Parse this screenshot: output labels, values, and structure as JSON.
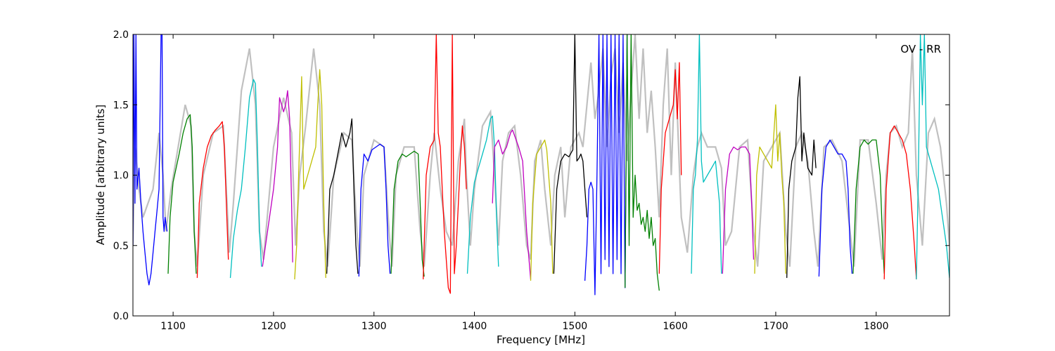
{
  "chart_data": {
    "type": "line",
    "xlabel": "Frequency [MHz]",
    "ylabel": "Amplitude [arbitrary units]",
    "annotation": "OV - RR",
    "annotation_position": "top-right",
    "xlim": [
      1060,
      1873
    ],
    "ylim": [
      0.0,
      2.0
    ],
    "xticks": [
      1100,
      1200,
      1300,
      1400,
      1500,
      1600,
      1700,
      1800
    ],
    "xtick_labels": [
      "1100",
      "1200",
      "1300",
      "1400",
      "1500",
      "1600",
      "1700",
      "1800"
    ],
    "yticks": [
      0.0,
      0.5,
      1.0,
      1.5,
      2.0
    ],
    "ytick_labels": [
      "0.0",
      "0.5",
      "1.0",
      "1.5",
      "2.0"
    ],
    "grid": false,
    "colors": {
      "background": "#c0c0c0",
      "blue": "#0000ff",
      "green": "#008000",
      "red": "#ff0000",
      "cyan": "#00bfbf",
      "magenta": "#bf00bf",
      "yellow": "#bfbf00",
      "black": "#000000"
    },
    "background_series": {
      "color": "#c0c0c0",
      "x": [
        1060,
        1062,
        1066,
        1070,
        1075,
        1080,
        1086,
        1090,
        1093,
        1098,
        1105,
        1112,
        1118,
        1121,
        1124,
        1130,
        1140,
        1150,
        1156,
        1160,
        1168,
        1176,
        1182,
        1186,
        1190,
        1200,
        1210,
        1218,
        1222,
        1226,
        1232,
        1240,
        1246,
        1250,
        1254,
        1260,
        1270,
        1278,
        1283,
        1286,
        1290,
        1300,
        1310,
        1315,
        1318,
        1322,
        1330,
        1340,
        1346,
        1350,
        1356,
        1360,
        1366,
        1372,
        1378,
        1384,
        1390,
        1392,
        1396,
        1400,
        1408,
        1416,
        1420,
        1424,
        1428,
        1434,
        1440,
        1446,
        1452,
        1456,
        1460,
        1466,
        1470,
        1476,
        1480,
        1486,
        1490,
        1496,
        1500,
        1504,
        1508,
        1512,
        1516,
        1520,
        1524,
        1528,
        1532,
        1536,
        1540,
        1544,
        1548,
        1552,
        1556,
        1560,
        1564,
        1568,
        1572,
        1576,
        1580,
        1584,
        1588,
        1592,
        1596,
        1600,
        1606,
        1612,
        1618,
        1622,
        1626,
        1632,
        1640,
        1646,
        1650,
        1656,
        1664,
        1672,
        1678,
        1682,
        1688,
        1696,
        1704,
        1710,
        1714,
        1720,
        1726,
        1732,
        1738,
        1742,
        1748,
        1756,
        1766,
        1774,
        1778,
        1784,
        1792,
        1800,
        1806,
        1810,
        1814,
        1820,
        1826,
        1832,
        1836,
        1840,
        1846,
        1852,
        1858,
        1864,
        1870,
        1873
      ],
      "y": [
        0.5,
        1.2,
        0.9,
        0.7,
        0.8,
        0.9,
        1.3,
        1.0,
        0.6,
        0.9,
        1.2,
        1.5,
        1.35,
        0.6,
        0.35,
        1.0,
        1.3,
        1.35,
        0.45,
        0.8,
        1.6,
        1.9,
        1.5,
        0.6,
        0.4,
        1.2,
        1.55,
        1.3,
        0.5,
        1.0,
        1.35,
        1.9,
        1.5,
        0.6,
        0.35,
        1.0,
        1.3,
        1.25,
        0.6,
        0.35,
        1.0,
        1.25,
        1.2,
        0.6,
        0.35,
        1.0,
        1.2,
        1.2,
        0.6,
        0.35,
        1.0,
        1.3,
        0.9,
        0.6,
        0.5,
        1.1,
        1.4,
        1.0,
        0.5,
        0.9,
        1.35,
        1.45,
        1.0,
        0.5,
        1.1,
        1.3,
        1.35,
        1.0,
        0.5,
        0.4,
        1.1,
        1.25,
        0.9,
        0.5,
        1.0,
        1.2,
        0.7,
        1.2,
        1.25,
        1.3,
        1.2,
        1.5,
        1.8,
        1.4,
        1.6,
        1.9,
        1.2,
        1.7,
        1.9,
        1.3,
        1.8,
        1.1,
        1.6,
        2.0,
        1.4,
        1.9,
        1.3,
        1.6,
        1.2,
        0.7,
        1.5,
        1.9,
        1.0,
        1.8,
        0.7,
        0.45,
        1.0,
        1.2,
        1.3,
        1.2,
        1.2,
        1.05,
        0.5,
        0.6,
        1.2,
        1.25,
        0.6,
        0.35,
        1.1,
        1.2,
        1.3,
        0.6,
        0.35,
        1.2,
        1.3,
        1.1,
        0.6,
        0.35,
        1.2,
        1.25,
        1.1,
        0.6,
        0.35,
        1.25,
        1.25,
        0.8,
        0.4,
        1.0,
        1.3,
        1.35,
        1.2,
        1.3,
        1.9,
        1.0,
        0.5,
        1.3,
        1.4,
        1.2,
        0.8,
        0.5
      ]
    },
    "series": [
      {
        "color": "#0000ff",
        "x": [
          1060,
          1061,
          1062,
          1063,
          1064,
          1066,
          1068,
          1070,
          1072,
          1074,
          1076,
          1078,
          1080,
          1082,
          1084,
          1086,
          1088,
          1089,
          1090,
          1091,
          1092,
          1094
        ],
        "y": [
          0.5,
          2.0,
          0.8,
          2.0,
          0.9,
          1.05,
          0.8,
          0.6,
          0.45,
          0.3,
          0.22,
          0.3,
          0.45,
          0.6,
          0.75,
          0.9,
          2.0,
          2.0,
          0.7,
          0.6,
          0.7,
          0.6
        ]
      },
      {
        "color": "#008000",
        "x": [
          1095,
          1097,
          1100,
          1103,
          1106,
          1110,
          1114,
          1117,
          1119,
          1121,
          1123
        ],
        "y": [
          0.3,
          0.7,
          0.95,
          1.05,
          1.15,
          1.3,
          1.4,
          1.43,
          1.2,
          0.6,
          0.3
        ]
      },
      {
        "color": "#ff0000",
        "x": [
          1124,
          1126,
          1130,
          1134,
          1138,
          1142,
          1146,
          1149,
          1151,
          1153,
          1155
        ],
        "y": [
          0.27,
          0.8,
          1.05,
          1.2,
          1.28,
          1.32,
          1.35,
          1.38,
          1.2,
          0.8,
          0.4
        ]
      },
      {
        "color": "#00bfbf",
        "x": [
          1157,
          1160,
          1164,
          1168,
          1172,
          1176,
          1180,
          1182,
          1184,
          1186,
          1188
        ],
        "y": [
          0.27,
          0.55,
          0.75,
          0.9,
          1.2,
          1.55,
          1.68,
          1.65,
          1.2,
          0.6,
          0.35
        ]
      },
      {
        "color": "#bf00bf",
        "x": [
          1189,
          1192,
          1196,
          1200,
          1204,
          1206,
          1208,
          1210,
          1212,
          1214,
          1216,
          1218,
          1219
        ],
        "y": [
          0.35,
          0.5,
          0.7,
          0.9,
          1.2,
          1.55,
          1.5,
          1.45,
          1.5,
          1.6,
          1.4,
          0.8,
          0.38
        ]
      },
      {
        "color": "#bfbf00",
        "x": [
          1221,
          1223,
          1225,
          1228,
          1230,
          1234,
          1238,
          1242,
          1244,
          1246,
          1248,
          1250,
          1252
        ],
        "y": [
          0.26,
          0.5,
          1.0,
          1.7,
          0.9,
          1.0,
          1.1,
          1.2,
          1.5,
          1.75,
          1.5,
          0.8,
          0.27
        ]
      },
      {
        "color": "#000000",
        "x": [
          1253,
          1256,
          1260,
          1264,
          1268,
          1272,
          1276,
          1278,
          1280,
          1282,
          1284
        ],
        "y": [
          0.3,
          0.9,
          1.0,
          1.15,
          1.3,
          1.2,
          1.3,
          1.4,
          0.9,
          0.5,
          0.3
        ]
      },
      {
        "color": "#0000ff",
        "x": [
          1285,
          1287,
          1290,
          1294,
          1298,
          1302,
          1306,
          1310,
          1312,
          1314,
          1316
        ],
        "y": [
          0.28,
          0.9,
          1.15,
          1.1,
          1.18,
          1.2,
          1.22,
          1.2,
          0.9,
          0.5,
          0.3
        ]
      },
      {
        "color": "#008000",
        "x": [
          1317,
          1320,
          1324,
          1328,
          1332,
          1336,
          1340,
          1344,
          1346,
          1348,
          1350
        ],
        "y": [
          0.3,
          0.9,
          1.1,
          1.15,
          1.13,
          1.15,
          1.17,
          1.15,
          0.8,
          0.4,
          0.28
        ]
      },
      {
        "color": "#ff0000",
        "x": [
          1349,
          1352,
          1356,
          1360,
          1362,
          1364,
          1366,
          1368,
          1370,
          1372,
          1374,
          1376,
          1378,
          1380,
          1382,
          1384,
          1386,
          1388,
          1390,
          1392
        ],
        "y": [
          0.26,
          1.0,
          1.2,
          1.25,
          2.0,
          1.3,
          1.2,
          0.9,
          0.6,
          0.4,
          0.2,
          0.16,
          2.0,
          0.3,
          0.5,
          0.8,
          1.1,
          1.35,
          1.2,
          0.9
        ]
      },
      {
        "color": "#00bfbf",
        "x": [
          1393,
          1396,
          1400,
          1404,
          1408,
          1412,
          1416,
          1418,
          1420,
          1422,
          1424
        ],
        "y": [
          0.3,
          0.7,
          0.95,
          1.05,
          1.15,
          1.25,
          1.4,
          1.42,
          1.2,
          0.7,
          0.35
        ]
      },
      {
        "color": "#bf00bf",
        "x": [
          1418,
          1420,
          1424,
          1428,
          1432,
          1436,
          1438,
          1440,
          1444,
          1448,
          1452,
          1456
        ],
        "y": [
          0.8,
          1.2,
          1.25,
          1.15,
          1.2,
          1.3,
          1.32,
          1.28,
          1.2,
          1.1,
          0.6,
          0.26
        ]
      },
      {
        "color": "#bfbf00",
        "x": [
          1456,
          1458,
          1462,
          1466,
          1470,
          1472,
          1476,
          1478
        ],
        "y": [
          0.25,
          0.8,
          1.15,
          1.2,
          1.25,
          1.18,
          0.8,
          0.3
        ]
      },
      {
        "color": "#000000",
        "x": [
          1479,
          1482,
          1486,
          1490,
          1494,
          1498,
          1500,
          1502,
          1504,
          1506,
          1508,
          1510,
          1512
        ],
        "y": [
          0.3,
          0.9,
          1.1,
          1.15,
          1.13,
          1.18,
          2.0,
          1.1,
          1.12,
          1.15,
          1.1,
          0.9,
          0.7
        ]
      },
      {
        "color": "#0000ff",
        "x": [
          1510,
          1512,
          1514,
          1516,
          1518,
          1520,
          1522,
          1524,
          1526,
          1528,
          1530,
          1532,
          1534,
          1536,
          1538,
          1540,
          1542,
          1544,
          1546,
          1548,
          1550,
          1552
        ],
        "y": [
          0.25,
          0.5,
          0.9,
          0.95,
          0.9,
          0.15,
          1.0,
          2.0,
          0.3,
          2.0,
          0.4,
          2.0,
          0.35,
          2.0,
          0.3,
          2.0,
          0.4,
          2.0,
          0.3,
          2.0,
          0.2,
          2.0
        ]
      },
      {
        "color": "#008000",
        "x": [
          1550,
          1552,
          1554,
          1556,
          1558,
          1560,
          1562,
          1564,
          1566,
          1568,
          1570,
          1572,
          1574,
          1576,
          1578,
          1580,
          1582,
          1584
        ],
        "y": [
          0.2,
          2.0,
          0.5,
          2.0,
          0.7,
          1.0,
          0.75,
          0.8,
          0.65,
          0.7,
          0.6,
          0.75,
          0.55,
          0.7,
          0.5,
          0.55,
          0.3,
          0.18
        ]
      },
      {
        "color": "#ff0000",
        "x": [
          1584,
          1586,
          1590,
          1594,
          1598,
          1600,
          1602,
          1604,
          1606
        ],
        "y": [
          0.3,
          0.9,
          1.3,
          1.4,
          1.5,
          1.75,
          1.4,
          1.8,
          1.0
        ]
      },
      {
        "color": "#00bfbf",
        "x": [
          1616,
          1618,
          1620,
          1622,
          1624,
          1626,
          1628,
          1632,
          1636,
          1640,
          1644,
          1646
        ],
        "y": [
          0.3,
          0.9,
          1.0,
          1.25,
          2.0,
          1.1,
          0.95,
          1.0,
          1.05,
          1.1,
          0.8,
          0.3
        ]
      },
      {
        "color": "#bf00bf",
        "x": [
          1647,
          1650,
          1654,
          1658,
          1662,
          1666,
          1670,
          1674,
          1676,
          1678
        ],
        "y": [
          0.3,
          0.9,
          1.15,
          1.2,
          1.18,
          1.2,
          1.2,
          1.15,
          0.8,
          0.4
        ]
      },
      {
        "color": "#bfbf00",
        "x": [
          1679,
          1681,
          1684,
          1688,
          1692,
          1696,
          1700,
          1702,
          1704,
          1706,
          1708,
          1710
        ],
        "y": [
          0.3,
          1.0,
          1.2,
          1.15,
          1.1,
          1.05,
          1.5,
          1.1,
          1.3,
          1.0,
          0.8,
          0.3
        ]
      },
      {
        "color": "#000000",
        "x": [
          1711,
          1713,
          1716,
          1720,
          1722,
          1724,
          1726,
          1728,
          1732,
          1736,
          1738,
          1740
        ],
        "y": [
          0.27,
          0.9,
          1.1,
          1.2,
          1.55,
          1.7,
          1.1,
          1.3,
          1.05,
          1.0,
          1.25,
          1.05
        ]
      },
      {
        "color": "#0000ff",
        "x": [
          1743,
          1746,
          1750,
          1754,
          1758,
          1762,
          1766,
          1770,
          1772,
          1774,
          1776
        ],
        "y": [
          0.28,
          0.9,
          1.2,
          1.25,
          1.2,
          1.15,
          1.15,
          1.1,
          0.9,
          0.5,
          0.3
        ]
      },
      {
        "color": "#008000",
        "x": [
          1777,
          1780,
          1784,
          1788,
          1792,
          1796,
          1800,
          1804,
          1806,
          1808
        ],
        "y": [
          0.3,
          0.9,
          1.2,
          1.25,
          1.22,
          1.25,
          1.25,
          1.0,
          0.6,
          0.3
        ]
      },
      {
        "color": "#ff0000",
        "x": [
          1808,
          1810,
          1814,
          1818,
          1822,
          1826,
          1830,
          1834,
          1838,
          1840
        ],
        "y": [
          0.26,
          0.9,
          1.3,
          1.35,
          1.3,
          1.25,
          1.15,
          0.9,
          0.5,
          0.26
        ]
      },
      {
        "color": "#00bfbf",
        "x": [
          1840,
          1842,
          1844,
          1846,
          1848,
          1850,
          1854,
          1858,
          1862,
          1866,
          1870,
          1873
        ],
        "y": [
          0.26,
          1.0,
          2.0,
          1.5,
          2.0,
          1.2,
          1.1,
          1.0,
          0.9,
          0.7,
          0.5,
          0.27
        ]
      }
    ]
  }
}
